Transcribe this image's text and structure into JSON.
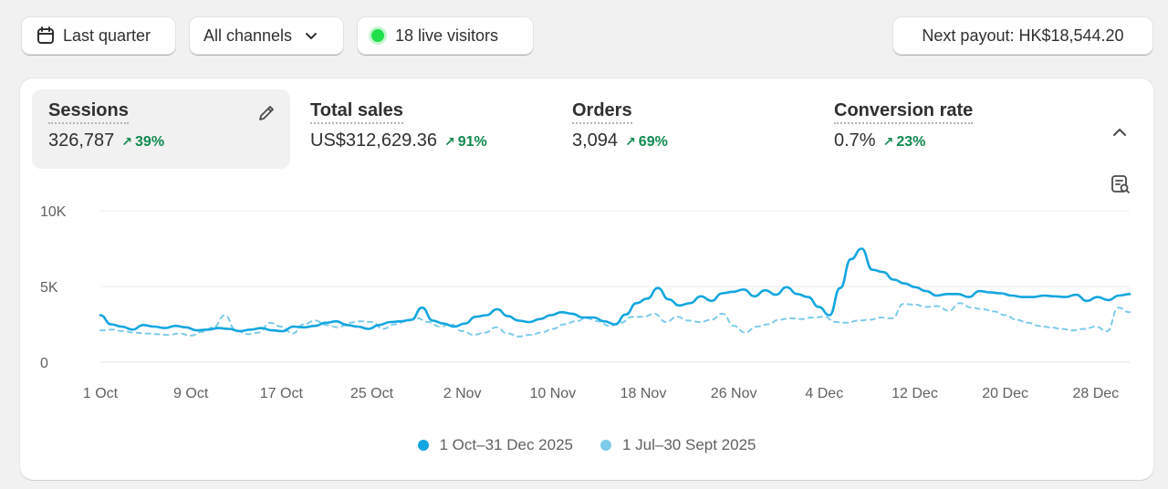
{
  "toolbar": {
    "period_label": "Last quarter",
    "channels_label": "All channels",
    "live_label": "18 live visitors",
    "payout_label": "Next payout: HK$18,544.20"
  },
  "metrics": [
    {
      "title": "Sessions",
      "value": "326,787",
      "change": "39%"
    },
    {
      "title": "Total sales",
      "value": "US$312,629.36",
      "change": "91%"
    },
    {
      "title": "Orders",
      "value": "3,094",
      "change": "69%"
    },
    {
      "title": "Conversion rate",
      "value": "0.7%",
      "change": "23%"
    }
  ],
  "colors": {
    "current": "#13a6e0",
    "previous": "#7ccbea",
    "positive": "#0f8a4f"
  },
  "chart_data": {
    "type": "line",
    "title": "Sessions",
    "xlabel": "",
    "ylabel": "",
    "ylim": [
      0,
      10000
    ],
    "y_ticks": [
      {
        "value": 0,
        "label": "0"
      },
      {
        "value": 5000,
        "label": "5K"
      },
      {
        "value": 10000,
        "label": "10K"
      }
    ],
    "x_ticks": [
      {
        "day": 0,
        "label": "1 Oct"
      },
      {
        "day": 8,
        "label": "9 Oct"
      },
      {
        "day": 16,
        "label": "17 Oct"
      },
      {
        "day": 24,
        "label": "25 Oct"
      },
      {
        "day": 32,
        "label": "2 Nov"
      },
      {
        "day": 40,
        "label": "10 Nov"
      },
      {
        "day": 48,
        "label": "18 Nov"
      },
      {
        "day": 56,
        "label": "26 Nov"
      },
      {
        "day": 64,
        "label": "4 Dec"
      },
      {
        "day": 72,
        "label": "12 Dec"
      },
      {
        "day": 80,
        "label": "20 Dec"
      },
      {
        "day": 88,
        "label": "28 Dec"
      }
    ],
    "x_max_day": 91,
    "series": [
      {
        "name": "1 Oct–31 Dec 2025",
        "style": "solid",
        "values": [
          3100,
          2500,
          2350,
          2150,
          2450,
          2350,
          2250,
          2400,
          2300,
          2100,
          2150,
          2250,
          2200,
          2050,
          2150,
          2250,
          2100,
          2050,
          2350,
          2300,
          2400,
          2600,
          2700,
          2450,
          2350,
          2200,
          2450,
          2650,
          2700,
          2800,
          3600,
          2750,
          2550,
          2350,
          2550,
          3000,
          3100,
          3500,
          3050,
          2750,
          2650,
          2850,
          3100,
          3300,
          3200,
          2950,
          2950,
          2700,
          2500,
          3150,
          3900,
          4200,
          4900,
          4150,
          3750,
          3900,
          4350,
          4050,
          4550,
          4650,
          4800,
          4350,
          4750,
          4450,
          4950,
          4500,
          4300,
          3650,
          3100,
          4900,
          6800,
          7500,
          6100,
          5950,
          5450,
          5200,
          4950,
          4700,
          4400,
          4500,
          4500,
          4300,
          4700,
          4600,
          4550,
          4400,
          4300,
          4300,
          4400,
          4350,
          4300,
          4450,
          4050,
          4300,
          4100,
          4400,
          4500
        ],
        "_note": "values sampled every ~0.95 days"
      },
      {
        "name": "1 Jul–30 Sept 2025",
        "style": "dashed",
        "values": [
          2100,
          2150,
          2050,
          1950,
          1900,
          1850,
          1800,
          1900,
          1750,
          2000,
          2300,
          3100,
          2100,
          1850,
          1950,
          2600,
          2350,
          1900,
          2500,
          2750,
          2450,
          2300,
          2600,
          2700,
          2650,
          2200,
          2500,
          2700,
          2900,
          2650,
          2350,
          2500,
          2050,
          1800,
          1950,
          2300,
          1900,
          1700,
          1800,
          1950,
          2200,
          2500,
          2700,
          2900,
          2700,
          2400,
          2600,
          3000,
          3000,
          3200,
          2650,
          3000,
          2750,
          2650,
          2800,
          3200,
          2400,
          1950,
          2350,
          2500,
          2800,
          2900,
          2850,
          2950,
          3000,
          2650,
          2600,
          2750,
          2800,
          2950,
          2900,
          3850,
          3800,
          3650,
          3700,
          3400,
          3900,
          3600,
          3500,
          3350,
          3100,
          2800,
          2600,
          2400,
          2300,
          2200,
          2100,
          2200,
          2350,
          2050,
          3600,
          3300
        ],
        "_note": "values sampled every ~0.95 days"
      }
    ],
    "legend": [
      "1 Oct–31 Dec 2025",
      "1 Jul–30 Sept 2025"
    ]
  }
}
